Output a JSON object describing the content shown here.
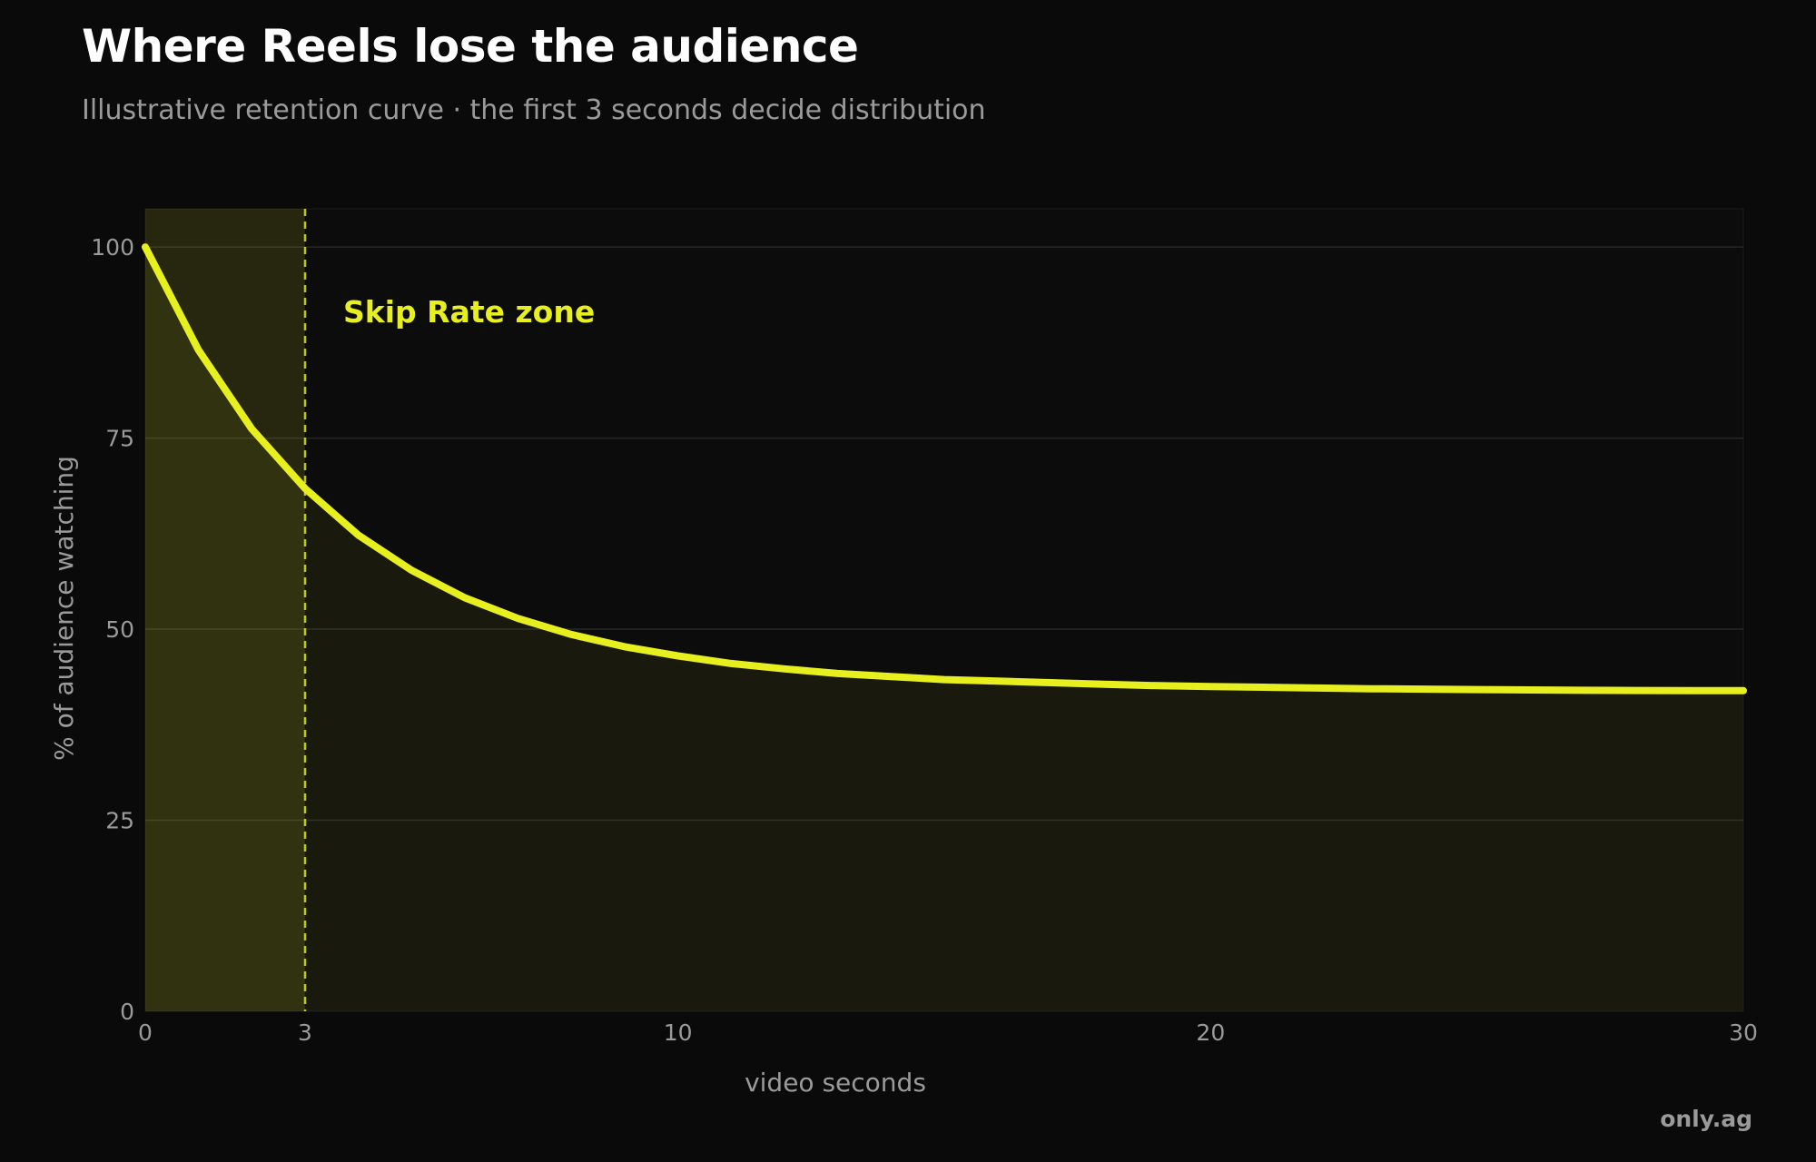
{
  "chart_data": {
    "type": "area",
    "title": "Where Reels lose the audience",
    "subtitle": "Illustrative retention curve · the first 3 seconds decide distribution",
    "xlabel": "video seconds",
    "ylabel": "% of audience watching",
    "xlim": [
      0,
      30
    ],
    "ylim": [
      0,
      105
    ],
    "x_ticks": [
      0,
      3,
      10,
      20,
      30
    ],
    "y_ticks": [
      0,
      25,
      50,
      75,
      100
    ],
    "grid": "horizontal",
    "series": [
      {
        "x": [
          0,
          1,
          2,
          3,
          4,
          5,
          6,
          7,
          8,
          9,
          10,
          11,
          12,
          13,
          14,
          15,
          16,
          17,
          18,
          19,
          20,
          21,
          22,
          23,
          24,
          25,
          26,
          27,
          28,
          29,
          30
        ],
        "values": [
          100,
          86.5,
          76.2,
          68.4,
          62.3,
          57.7,
          54.1,
          51.4,
          49.3,
          47.7,
          46.5,
          45.5,
          44.8,
          44.2,
          43.8,
          43.4,
          43.2,
          43.0,
          42.8,
          42.6,
          42.5,
          42.4,
          42.3,
          42.2,
          42.15,
          42.1,
          42.05,
          42.0,
          41.98,
          41.96,
          41.95
        ],
        "color": "#e7f01e"
      }
    ],
    "annotations": [
      {
        "type": "shaded-zone",
        "x_range": [
          0,
          3
        ],
        "label": "Skip Rate zone",
        "color": "#e7f01e"
      }
    ],
    "colors": {
      "background": "#0a0a0a",
      "accent": "#e7f01e",
      "grid": "#262626",
      "text_muted": "#9a9a9a"
    }
  },
  "credit": "only.ag"
}
